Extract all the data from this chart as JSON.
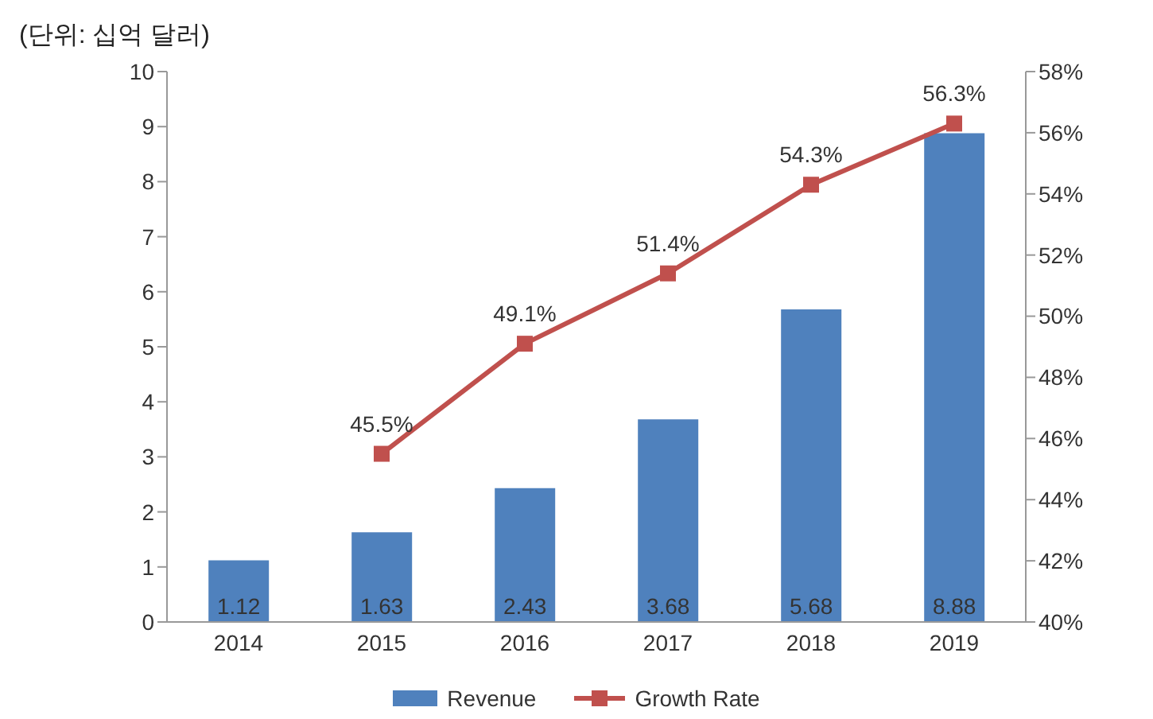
{
  "chart_data": {
    "type": "bar",
    "annotations": [
      "(단위: 십억 달러)"
    ],
    "categories": [
      "2014",
      "2015",
      "2016",
      "2017",
      "2018",
      "2019"
    ],
    "series": [
      {
        "name": "Revenue",
        "color": "#4f81bd",
        "values": [
          1.12,
          1.63,
          2.43,
          3.68,
          5.68,
          8.88
        ],
        "value_labels": [
          "1.12",
          "1.63",
          "2.43",
          "3.68",
          "5.68",
          "8.88"
        ]
      },
      {
        "name": "Growth Rate",
        "type": "line",
        "axis": "y2",
        "color": "#c0504d",
        "marker": "square",
        "values": [
          null,
          45.5,
          49.1,
          51.4,
          54.3,
          56.3
        ],
        "value_labels": [
          null,
          "45.5%",
          "49.1%",
          "51.4%",
          "54.3%",
          "56.3%"
        ]
      }
    ],
    "ylim": [
      0,
      10
    ],
    "yticks": [
      0,
      1,
      2,
      3,
      4,
      5,
      6,
      7,
      8,
      9,
      10
    ],
    "y2lim": [
      40,
      58
    ],
    "y2ticks": [
      {
        "value": 40,
        "label": "40%"
      },
      {
        "value": 42,
        "label": "42%"
      },
      {
        "value": 44,
        "label": "44%"
      },
      {
        "value": 46,
        "label": "46%"
      },
      {
        "value": 48,
        "label": "48%"
      },
      {
        "value": 50,
        "label": "50%"
      },
      {
        "value": 52,
        "label": "52%"
      },
      {
        "value": 54,
        "label": "54%"
      },
      {
        "value": 56,
        "label": "56%"
      },
      {
        "value": 58,
        "label": "58%"
      }
    ],
    "legend": "bottom"
  }
}
